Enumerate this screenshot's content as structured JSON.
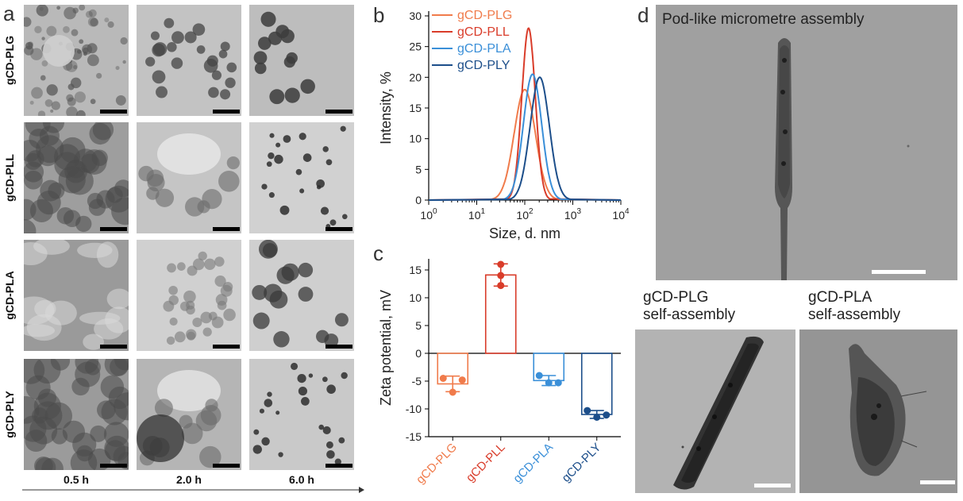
{
  "panels": {
    "a": {
      "letter": "a",
      "rows": [
        "gCD-PLG",
        "gCD-PLL",
        "gCD-PLA",
        "gCD-PLY"
      ],
      "times": [
        "0.5 h",
        "2.0 h",
        "6.0 h"
      ]
    },
    "b": {
      "letter": "b"
    },
    "c": {
      "letter": "c"
    },
    "d": {
      "letter": "d",
      "main_label": "Pod-like micrometre assembly",
      "plg_label_line1": "gCD-PLG",
      "plg_label_line2": "self-assembly",
      "pla_label_line1": "gCD-PLA",
      "pla_label_line2": "self-assembly"
    }
  },
  "colors": {
    "PLG": "#f07b4b",
    "PLL": "#d93c2a",
    "PLA": "#3a8fd8",
    "PLY": "#1c4e8a"
  },
  "chart_data": [
    {
      "type": "line",
      "panel": "b",
      "xlabel": "Size, d. nm",
      "ylabel": "Intensity, %",
      "xscale": "log",
      "xlim": [
        1,
        10000
      ],
      "ylim": [
        0,
        30
      ],
      "xticks": [
        1,
        10,
        100,
        1000,
        10000
      ],
      "xtick_labels": [
        "10^0",
        "10^1",
        "10^2",
        "10^3",
        "10^4"
      ],
      "yticks": [
        0,
        5,
        10,
        15,
        20,
        25,
        30
      ],
      "legend_position": "top-left",
      "series": [
        {
          "name": "gCD-PLG",
          "color": "#f07b4b",
          "peak_x": 100,
          "peak_y": 18,
          "width": 0.22
        },
        {
          "name": "gCD-PLL",
          "color": "#d93c2a",
          "peak_x": 120,
          "peak_y": 28,
          "width": 0.14
        },
        {
          "name": "gCD-PLA",
          "color": "#3a8fd8",
          "peak_x": 145,
          "peak_y": 20.5,
          "width": 0.19
        },
        {
          "name": "gCD-PLY",
          "color": "#1c4e8a",
          "peak_x": 205,
          "peak_y": 20,
          "width": 0.2
        }
      ]
    },
    {
      "type": "bar",
      "panel": "c",
      "ylabel": "Zeta potential, mV",
      "ylim": [
        -15,
        17
      ],
      "yticks": [
        -15,
        -10,
        -5,
        0,
        5,
        10,
        15
      ],
      "categories": [
        "gCD-PLG",
        "gCD-PLL",
        "gCD-PLA",
        "gCD-PLY"
      ],
      "category_colors": [
        "#f07b4b",
        "#d93c2a",
        "#3a8fd8",
        "#1c4e8a"
      ],
      "values": [
        -5.5,
        14.1,
        -4.9,
        -11.0
      ],
      "errors": [
        1.4,
        2.0,
        0.9,
        0.7
      ],
      "points": [
        [
          -4.5,
          -7.0,
          -4.8
        ],
        [
          16.0,
          14.0,
          12.2
        ],
        [
          -4.0,
          -5.3,
          -5.3
        ],
        [
          -10.3,
          -11.5,
          -11.1
        ]
      ]
    }
  ]
}
